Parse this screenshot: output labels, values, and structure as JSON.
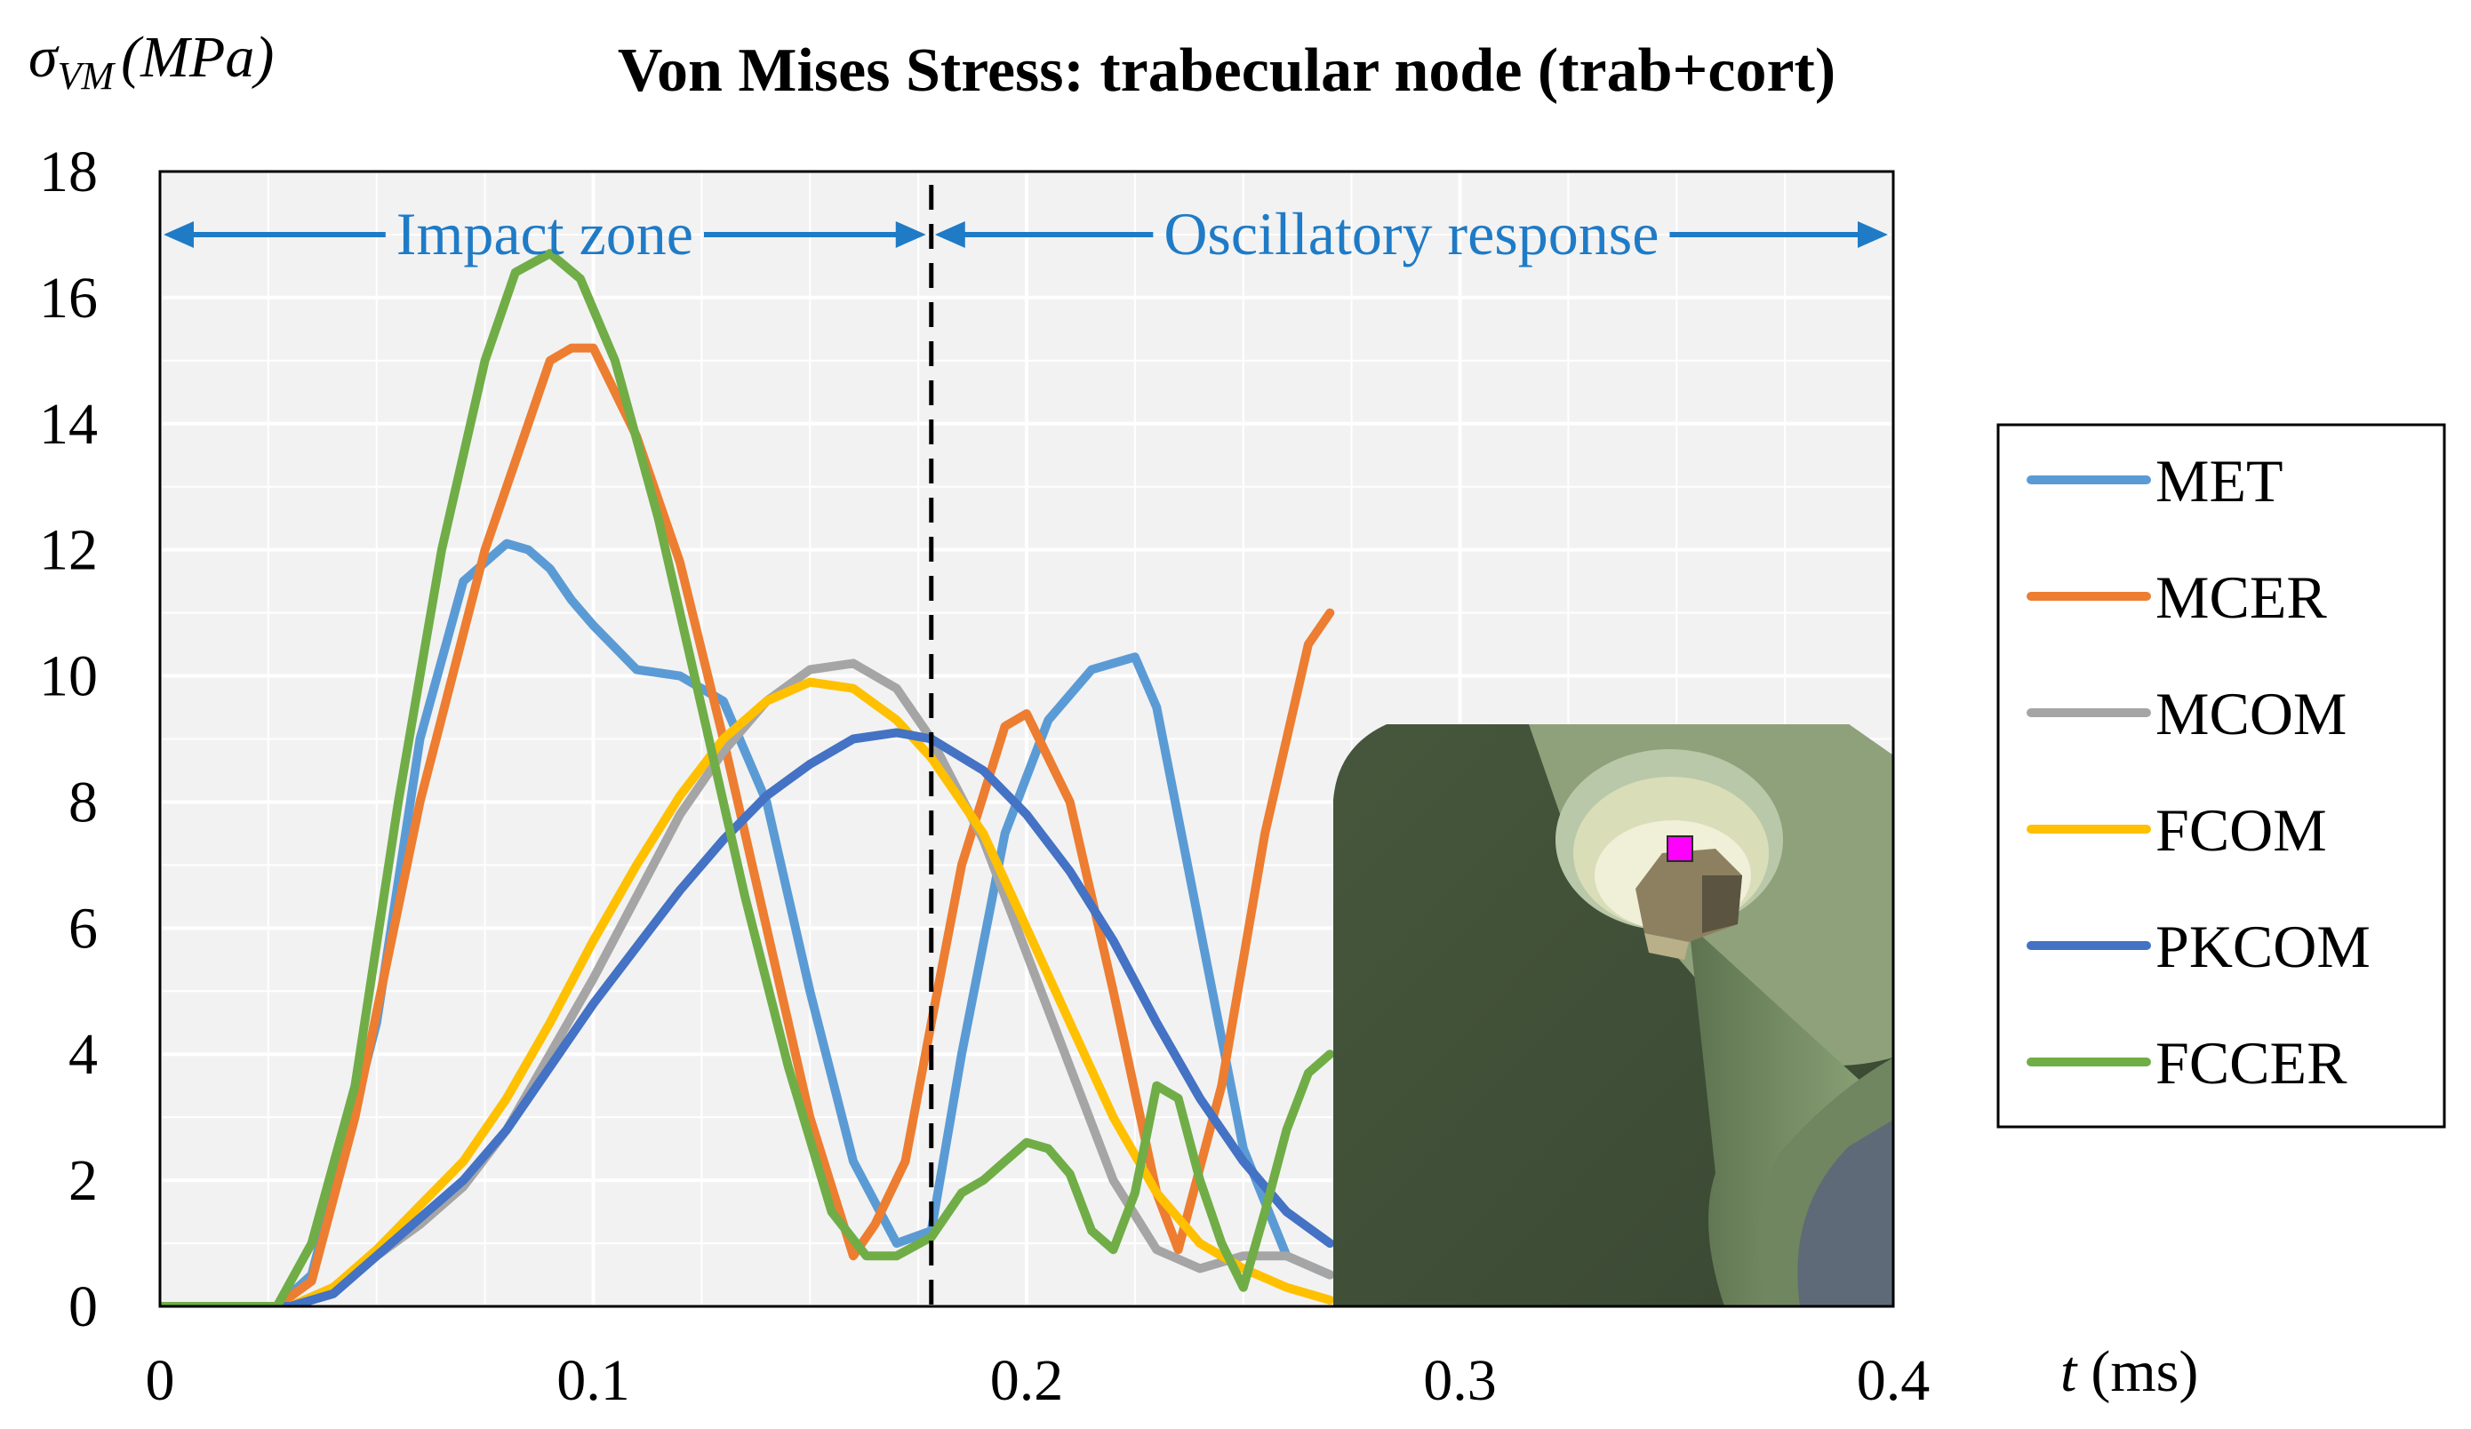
{
  "chart_data": {
    "type": "line",
    "title": "Von Mises Stress: trabecular node (trab+cort)",
    "ylabel": "σVM (MPa)",
    "ylabel_symbol": "σ",
    "ylabel_sub": "VM",
    "ylabel_unit": "(MPa)",
    "xlabel": "t (ms)",
    "xlabel_symbol": "t",
    "xlabel_unit": "(ms)",
    "xlim": [
      0,
      0.4
    ],
    "ylim": [
      0,
      18
    ],
    "x_ticks": [
      0,
      0.1,
      0.2,
      0.3,
      0.4
    ],
    "x_tick_labels": [
      "0",
      "0.1",
      "0.2",
      "0.3",
      "0.4"
    ],
    "y_ticks": [
      0,
      2,
      4,
      6,
      8,
      10,
      12,
      14,
      16,
      18
    ],
    "y_tick_labels": [
      "0",
      "2",
      "4",
      "6",
      "8",
      "10",
      "12",
      "14",
      "16",
      "18"
    ],
    "grid": true,
    "legend_position": "right",
    "divider_x": 0.178,
    "annotations": [
      {
        "text": "Impact zone",
        "x_start": 0,
        "x_end": 0.178,
        "y": 17
      },
      {
        "text": "Oscillatory response",
        "x_start": 0.178,
        "x_end": 0.4,
        "y": 17
      }
    ],
    "series": [
      {
        "name": "MET",
        "color": "#5b9bd5",
        "x": [
          0,
          0.027,
          0.035,
          0.05,
          0.06,
          0.07,
          0.08,
          0.085,
          0.09,
          0.095,
          0.1,
          0.11,
          0.12,
          0.13,
          0.14,
          0.15,
          0.16,
          0.17,
          0.178,
          0.185,
          0.195,
          0.205,
          0.215,
          0.225,
          0.23,
          0.24,
          0.25,
          0.26,
          0.27
        ],
        "y": [
          0,
          0,
          0.5,
          4.5,
          9,
          11.5,
          12.1,
          12.0,
          11.7,
          11.2,
          10.8,
          10.1,
          10.0,
          9.6,
          8.0,
          5.0,
          2.3,
          1.0,
          1.2,
          4.0,
          7.5,
          9.3,
          10.1,
          10.3,
          9.5,
          6.0,
          2.5,
          0.8,
          0.5
        ]
      },
      {
        "name": "MCER",
        "color": "#ed7d31",
        "x": [
          0,
          0.027,
          0.035,
          0.045,
          0.06,
          0.075,
          0.085,
          0.09,
          0.095,
          0.1,
          0.11,
          0.12,
          0.13,
          0.14,
          0.15,
          0.16,
          0.165,
          0.172,
          0.178,
          0.185,
          0.195,
          0.2,
          0.21,
          0.22,
          0.23,
          0.235,
          0.245,
          0.255,
          0.265,
          0.27
        ],
        "y": [
          0,
          0,
          0.4,
          3.0,
          8.0,
          12.0,
          14.0,
          15.0,
          15.2,
          15.2,
          13.8,
          11.8,
          9.0,
          6.0,
          3.0,
          0.8,
          1.3,
          2.3,
          4.5,
          7.0,
          9.2,
          9.4,
          8.0,
          5.0,
          1.8,
          0.9,
          3.5,
          7.5,
          10.5,
          11.0
        ]
      },
      {
        "name": "MCOM",
        "color": "#a5a5a5",
        "x": [
          0,
          0.03,
          0.04,
          0.05,
          0.06,
          0.07,
          0.08,
          0.09,
          0.1,
          0.11,
          0.12,
          0.13,
          0.14,
          0.15,
          0.16,
          0.17,
          0.178,
          0.19,
          0.2,
          0.21,
          0.22,
          0.23,
          0.24,
          0.25,
          0.26,
          0.27
        ],
        "y": [
          0,
          0,
          0.3,
          0.8,
          1.3,
          1.9,
          2.8,
          4.0,
          5.2,
          6.5,
          7.8,
          8.8,
          9.6,
          10.1,
          10.2,
          9.8,
          9.0,
          7.4,
          5.6,
          3.8,
          2.0,
          0.9,
          0.6,
          0.8,
          0.8,
          0.5
        ]
      },
      {
        "name": "FCOM",
        "color": "#ffc000",
        "x": [
          0,
          0.03,
          0.04,
          0.05,
          0.06,
          0.07,
          0.08,
          0.09,
          0.1,
          0.11,
          0.12,
          0.13,
          0.14,
          0.15,
          0.16,
          0.17,
          0.178,
          0.19,
          0.2,
          0.21,
          0.22,
          0.23,
          0.24,
          0.25,
          0.26,
          0.27
        ],
        "y": [
          0,
          0,
          0.3,
          0.9,
          1.6,
          2.3,
          3.3,
          4.5,
          5.8,
          7.0,
          8.1,
          9.0,
          9.6,
          9.9,
          9.8,
          9.3,
          8.7,
          7.5,
          6.0,
          4.5,
          3.0,
          1.8,
          1.0,
          0.6,
          0.3,
          0.1
        ]
      },
      {
        "name": "PKCOM",
        "color": "#4472c4",
        "x": [
          0,
          0.03,
          0.04,
          0.05,
          0.06,
          0.07,
          0.08,
          0.09,
          0.1,
          0.11,
          0.12,
          0.13,
          0.14,
          0.15,
          0.16,
          0.17,
          0.178,
          0.19,
          0.2,
          0.21,
          0.22,
          0.23,
          0.24,
          0.25,
          0.26,
          0.27
        ],
        "y": [
          0,
          0,
          0.2,
          0.8,
          1.4,
          2.0,
          2.8,
          3.8,
          4.8,
          5.7,
          6.6,
          7.4,
          8.1,
          8.6,
          9.0,
          9.1,
          9.0,
          8.5,
          7.8,
          6.9,
          5.8,
          4.5,
          3.3,
          2.3,
          1.5,
          1.0
        ]
      },
      {
        "name": "FCCER",
        "color": "#70ad47",
        "x": [
          0,
          0.027,
          0.035,
          0.045,
          0.055,
          0.065,
          0.075,
          0.082,
          0.09,
          0.097,
          0.105,
          0.115,
          0.125,
          0.135,
          0.145,
          0.155,
          0.163,
          0.17,
          0.178,
          0.185,
          0.19,
          0.195,
          0.2,
          0.205,
          0.21,
          0.215,
          0.22,
          0.225,
          0.23,
          0.235,
          0.24,
          0.245,
          0.25,
          0.255,
          0.26,
          0.265,
          0.27
        ],
        "y": [
          0,
          0,
          1.0,
          3.5,
          8.0,
          12.0,
          15.0,
          16.4,
          16.7,
          16.3,
          15.0,
          12.5,
          9.5,
          6.5,
          3.8,
          1.5,
          0.8,
          0.8,
          1.1,
          1.8,
          2.0,
          2.3,
          2.6,
          2.5,
          2.1,
          1.2,
          0.9,
          1.8,
          3.5,
          3.3,
          2.0,
          1.0,
          0.3,
          1.5,
          2.8,
          3.7,
          4.0
        ]
      }
    ]
  },
  "inset": {
    "name": "trabecular node model view"
  }
}
